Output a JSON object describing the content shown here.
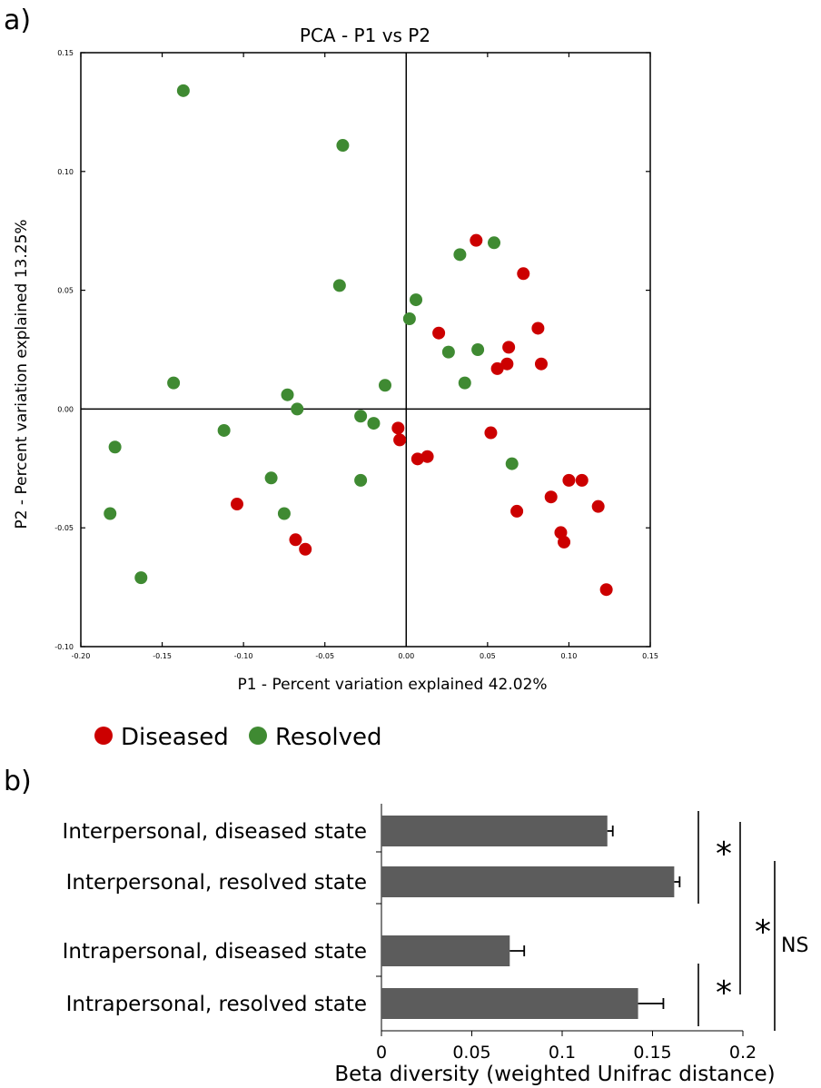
{
  "chart_data": [
    {
      "type": "scatter",
      "panel_label": "a)",
      "title": "PCA - P1 vs P2",
      "xlabel": "P1 - Percent variation explained 42.02%",
      "ylabel": "P2 - Percent variation explained 13.25%",
      "xlim": [
        -0.2,
        0.15
      ],
      "ylim": [
        -0.1,
        0.15
      ],
      "xticks": [
        "-0.20",
        "-0.15",
        "-0.10",
        "-0.05",
        "0.00",
        "0.05",
        "0.10",
        "0.15"
      ],
      "yticks": [
        "-0.10",
        "-0.05",
        "0.00",
        "0.05",
        "0.10",
        "0.15"
      ],
      "zero_lines": true,
      "legend": {
        "position": "bottom-left",
        "entries": [
          "Diseased",
          "Resolved"
        ]
      },
      "colors": {
        "Diseased": "#cc0000",
        "Resolved": "#3f8a32"
      },
      "series": [
        {
          "name": "Diseased",
          "points": [
            [
              0.043,
              0.071
            ],
            [
              0.072,
              0.057
            ],
            [
              0.081,
              0.034
            ],
            [
              0.02,
              0.032
            ],
            [
              0.063,
              0.026
            ],
            [
              0.062,
              0.019
            ],
            [
              0.056,
              0.017
            ],
            [
              0.083,
              0.019
            ],
            [
              -0.005,
              -0.008
            ],
            [
              -0.004,
              -0.013
            ],
            [
              0.052,
              -0.01
            ],
            [
              0.007,
              -0.021
            ],
            [
              0.013,
              -0.02
            ],
            [
              0.1,
              -0.03
            ],
            [
              0.108,
              -0.03
            ],
            [
              0.089,
              -0.037
            ],
            [
              0.068,
              -0.043
            ],
            [
              0.118,
              -0.041
            ],
            [
              -0.104,
              -0.04
            ],
            [
              0.095,
              -0.052
            ],
            [
              0.097,
              -0.056
            ],
            [
              -0.068,
              -0.055
            ],
            [
              -0.062,
              -0.059
            ],
            [
              0.123,
              -0.076
            ]
          ]
        },
        {
          "name": "Resolved",
          "points": [
            [
              -0.137,
              0.134
            ],
            [
              -0.039,
              0.111
            ],
            [
              0.054,
              0.07
            ],
            [
              0.033,
              0.065
            ],
            [
              -0.041,
              0.052
            ],
            [
              0.006,
              0.046
            ],
            [
              0.002,
              0.038
            ],
            [
              0.026,
              0.024
            ],
            [
              0.044,
              0.025
            ],
            [
              0.036,
              0.011
            ],
            [
              -0.143,
              0.011
            ],
            [
              -0.013,
              0.01
            ],
            [
              -0.073,
              0.006
            ],
            [
              -0.067,
              0.0
            ],
            [
              -0.028,
              -0.003
            ],
            [
              -0.02,
              -0.006
            ],
            [
              -0.112,
              -0.009
            ],
            [
              -0.179,
              -0.016
            ],
            [
              0.065,
              -0.023
            ],
            [
              -0.083,
              -0.029
            ],
            [
              -0.028,
              -0.03
            ],
            [
              -0.075,
              -0.044
            ],
            [
              -0.182,
              -0.044
            ],
            [
              -0.163,
              -0.071
            ]
          ]
        }
      ]
    },
    {
      "type": "bar",
      "orientation": "horizontal",
      "panel_label": "b)",
      "xlabel": "Beta diversity (weighted Unifrac distance)",
      "xlim": [
        0,
        0.2
      ],
      "xticks": [
        "0",
        "0.05",
        "0.1",
        "0.15",
        "0.2"
      ],
      "categories": [
        "Interpersonal, diseased state",
        "Interpersonal, resolved state",
        "Intrapersonal, diseased state",
        "Intrapersonal, resolved state"
      ],
      "values": [
        0.125,
        0.162,
        0.071,
        0.142
      ],
      "errors": [
        0.003,
        0.003,
        0.008,
        0.014
      ],
      "bar_color": "#5c5c5c",
      "annotations": [
        {
          "text": "*",
          "between": [
            0,
            1
          ]
        },
        {
          "text": "*",
          "between": [
            2,
            3
          ]
        },
        {
          "text": "*",
          "between": [
            0,
            3
          ]
        },
        {
          "text": "NS",
          "between": [
            1,
            3
          ]
        }
      ]
    }
  ]
}
